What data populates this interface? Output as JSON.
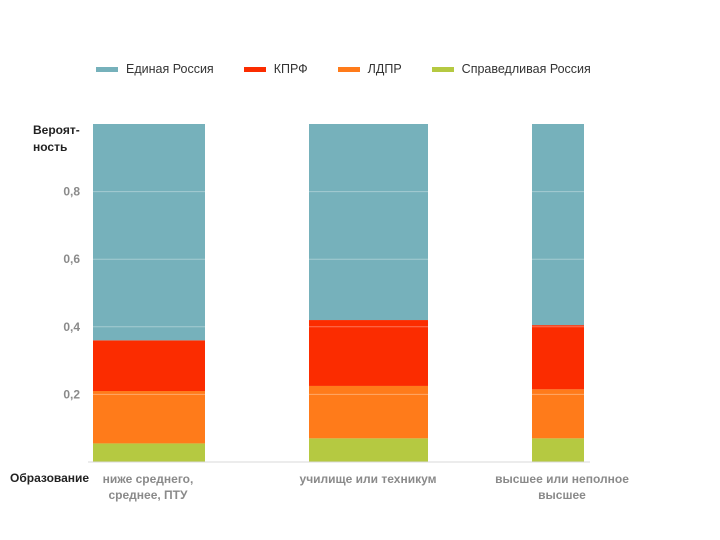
{
  "chart_data": {
    "type": "bar",
    "stacked": true,
    "ylabel": "Вероят-\nность",
    "xlabel": "Образование",
    "ylim": [
      0,
      1
    ],
    "yticks": [
      "0,2",
      "0,4",
      "0,6",
      "0,8"
    ],
    "ytick_values": [
      0.2,
      0.4,
      0.6,
      0.8
    ],
    "grid": true,
    "legend_position": "top",
    "categories": [
      "ниже среднего,\nсреднее, ПТУ",
      "училище или техникум",
      "высшее или неполное\nвысшее"
    ],
    "series": [
      {
        "name": "Справедливая Россия",
        "color": "#b5c941",
        "values": [
          0.055,
          0.07,
          0.07
        ]
      },
      {
        "name": "ЛДПР",
        "color": "#ff7b1a",
        "values": [
          0.155,
          0.155,
          0.145
        ]
      },
      {
        "name": "КПРФ",
        "color": "#fb2c00",
        "values": [
          0.15,
          0.195,
          0.19
        ]
      },
      {
        "name": "Единая Россия",
        "color": "#76b1bb",
        "values": [
          0.64,
          0.58,
          0.595
        ]
      }
    ]
  },
  "legend": [
    {
      "label": "Единая Россия",
      "color": "#76b1bb"
    },
    {
      "label": "КПРФ",
      "color": "#fb2c00"
    },
    {
      "label": "ЛДПР",
      "color": "#ff7b1a"
    },
    {
      "label": "Справедливая Россия",
      "color": "#b5c941"
    }
  ]
}
